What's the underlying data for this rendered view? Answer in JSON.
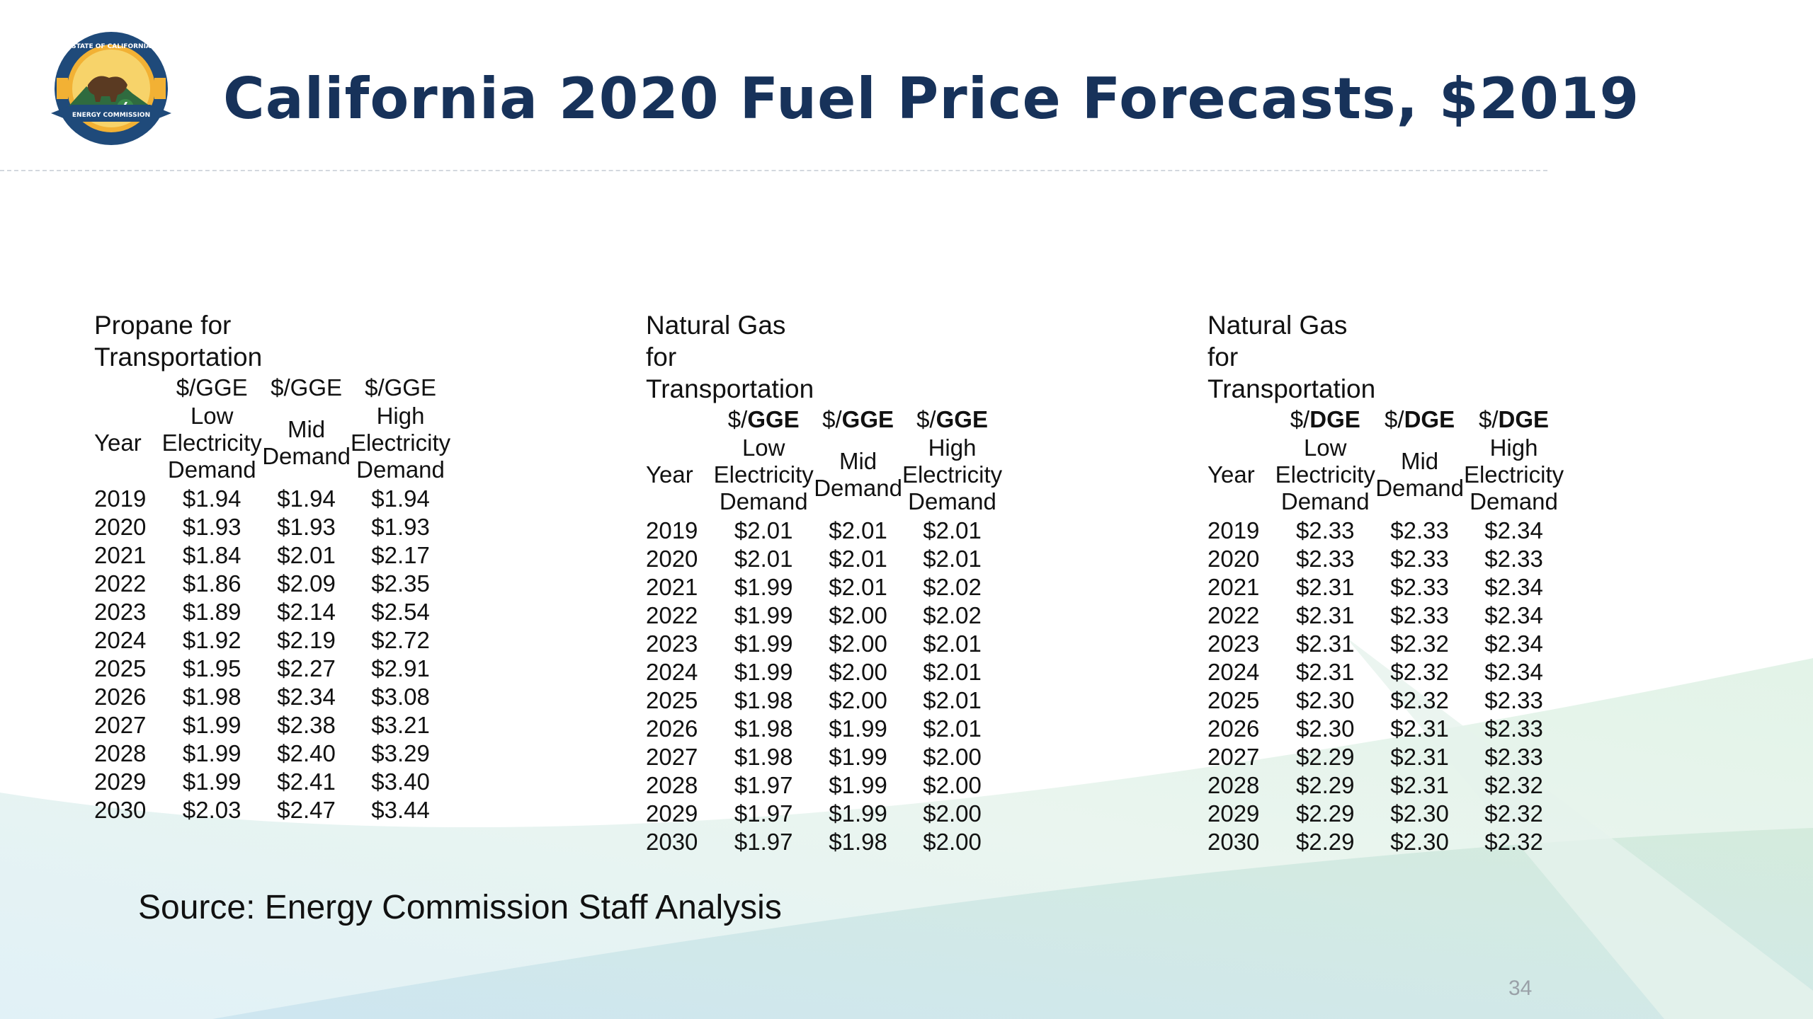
{
  "slide": {
    "title": "California 2020 Fuel Price Forecasts, $2019",
    "source": "Source: Energy Commission Staff Analysis",
    "page_number": "34",
    "title_color": "#17325a"
  },
  "seal": {
    "icon": "california-energy-commission-seal-icon",
    "top_text": "STATE OF CALIFORNIA",
    "banner_text": "ENERGY COMMISSION"
  },
  "tables": [
    {
      "heading": [
        "Propane for",
        "Transportation"
      ],
      "year_label": "Year",
      "units": [
        "$/GGE",
        "$/GGE",
        "$/GGE"
      ],
      "descriptions": [
        [
          "Low",
          "Electricity",
          "Demand"
        ],
        [
          "Mid",
          "Demand"
        ],
        [
          "High",
          "Electricity",
          "Demand"
        ]
      ],
      "rows": [
        [
          "2019",
          "$1.94",
          "$1.94",
          "$1.94"
        ],
        [
          "2020",
          "$1.93",
          "$1.93",
          "$1.93"
        ],
        [
          "2021",
          "$1.84",
          "$2.01",
          "$2.17"
        ],
        [
          "2022",
          "$1.86",
          "$2.09",
          "$2.35"
        ],
        [
          "2023",
          "$1.89",
          "$2.14",
          "$2.54"
        ],
        [
          "2024",
          "$1.92",
          "$2.19",
          "$2.72"
        ],
        [
          "2025",
          "$1.95",
          "$2.27",
          "$2.91"
        ],
        [
          "2026",
          "$1.98",
          "$2.34",
          "$3.08"
        ],
        [
          "2027",
          "$1.99",
          "$2.38",
          "$3.21"
        ],
        [
          "2028",
          "$1.99",
          "$2.40",
          "$3.29"
        ],
        [
          "2029",
          "$1.99",
          "$2.41",
          "$3.40"
        ],
        [
          "2030",
          "$2.03",
          "$2.47",
          "$3.44"
        ]
      ]
    },
    {
      "heading": [
        "Natural Gas for",
        "Transportation"
      ],
      "year_label": "Year",
      "unit_prefix": "$/",
      "unit_suffix": "GGE",
      "descriptions": [
        [
          "Low",
          "Electricity",
          "Demand"
        ],
        [
          "Mid",
          "Demand"
        ],
        [
          "High",
          "Electricity",
          "Demand"
        ]
      ],
      "rows": [
        [
          "2019",
          "$2.01",
          "$2.01",
          "$2.01"
        ],
        [
          "2020",
          "$2.01",
          "$2.01",
          "$2.01"
        ],
        [
          "2021",
          "$1.99",
          "$2.01",
          "$2.02"
        ],
        [
          "2022",
          "$1.99",
          "$2.00",
          "$2.02"
        ],
        [
          "2023",
          "$1.99",
          "$2.00",
          "$2.01"
        ],
        [
          "2024",
          "$1.99",
          "$2.00",
          "$2.01"
        ],
        [
          "2025",
          "$1.98",
          "$2.00",
          "$2.01"
        ],
        [
          "2026",
          "$1.98",
          "$1.99",
          "$2.01"
        ],
        [
          "2027",
          "$1.98",
          "$1.99",
          "$2.00"
        ],
        [
          "2028",
          "$1.97",
          "$1.99",
          "$2.00"
        ],
        [
          "2029",
          "$1.97",
          "$1.99",
          "$2.00"
        ],
        [
          "2030",
          "$1.97",
          "$1.98",
          "$2.00"
        ]
      ]
    },
    {
      "heading": [
        "Natural Gas for",
        "Transportation"
      ],
      "year_label": "Year",
      "unit_prefix": "$/",
      "unit_suffix": "DGE",
      "descriptions": [
        [
          "Low",
          "Electricity",
          "Demand"
        ],
        [
          "Mid",
          "Demand"
        ],
        [
          "High",
          "Electricity",
          "Demand"
        ]
      ],
      "rows": [
        [
          "2019",
          "$2.33",
          "$2.33",
          "$2.34"
        ],
        [
          "2020",
          "$2.33",
          "$2.33",
          "$2.33"
        ],
        [
          "2021",
          "$2.31",
          "$2.33",
          "$2.34"
        ],
        [
          "2022",
          "$2.31",
          "$2.33",
          "$2.34"
        ],
        [
          "2023",
          "$2.31",
          "$2.32",
          "$2.34"
        ],
        [
          "2024",
          "$2.31",
          "$2.32",
          "$2.34"
        ],
        [
          "2025",
          "$2.30",
          "$2.32",
          "$2.33"
        ],
        [
          "2026",
          "$2.30",
          "$2.31",
          "$2.33"
        ],
        [
          "2027",
          "$2.29",
          "$2.31",
          "$2.33"
        ],
        [
          "2028",
          "$2.29",
          "$2.31",
          "$2.32"
        ],
        [
          "2029",
          "$2.29",
          "$2.30",
          "$2.32"
        ],
        [
          "2030",
          "$2.29",
          "$2.30",
          "$2.32"
        ]
      ]
    }
  ]
}
